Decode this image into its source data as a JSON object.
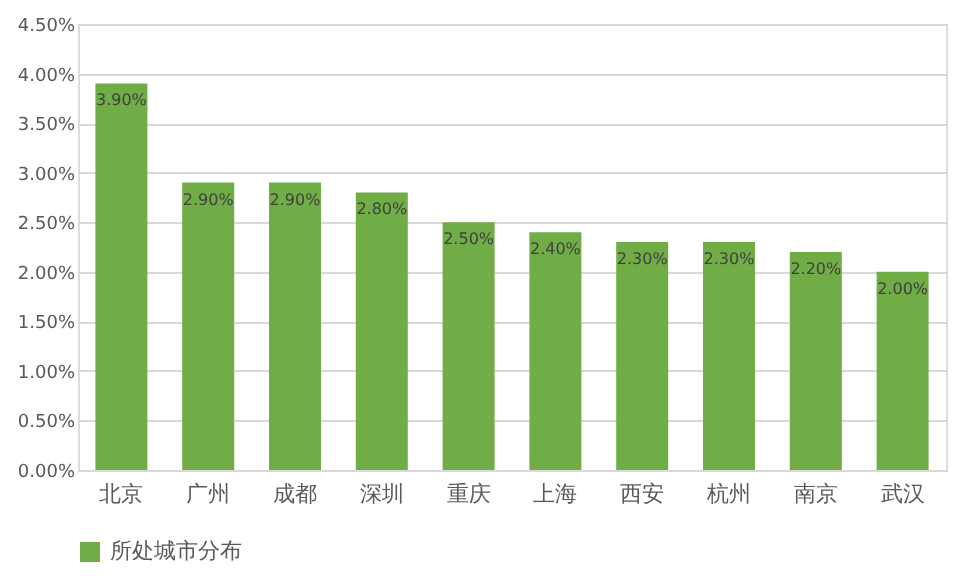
{
  "chart_data": {
    "type": "bar",
    "categories": [
      "北京",
      "广州",
      "成都",
      "深圳",
      "重庆",
      "上海",
      "西安",
      "杭州",
      "南京",
      "武汉"
    ],
    "series": [
      {
        "name": "所处城市分布",
        "color": "#70ad47",
        "values": [
          3.9,
          2.9,
          2.9,
          2.8,
          2.5,
          2.4,
          2.3,
          2.3,
          2.2,
          2.0
        ],
        "value_labels": [
          "3.90%",
          "2.90%",
          "2.90%",
          "2.80%",
          "2.50%",
          "2.40%",
          "2.30%",
          "2.30%",
          "2.20%",
          "2.00%"
        ]
      }
    ],
    "ylim": [
      0,
      4.5
    ],
    "yticks": [
      {
        "value": 0,
        "label": "0.00%"
      },
      {
        "value": 0.5,
        "label": "0.50%"
      },
      {
        "value": 1,
        "label": "1.00%"
      },
      {
        "value": 1.5,
        "label": "1.50%"
      },
      {
        "value": 2,
        "label": "2.00%"
      },
      {
        "value": 2.5,
        "label": "2.50%"
      },
      {
        "value": 3,
        "label": "3.00%"
      },
      {
        "value": 3.5,
        "label": "3.50%"
      },
      {
        "value": 4,
        "label": "4.00%"
      },
      {
        "value": 4.5,
        "label": "4.50%"
      }
    ],
    "grid": "y",
    "legend": "bottom"
  }
}
